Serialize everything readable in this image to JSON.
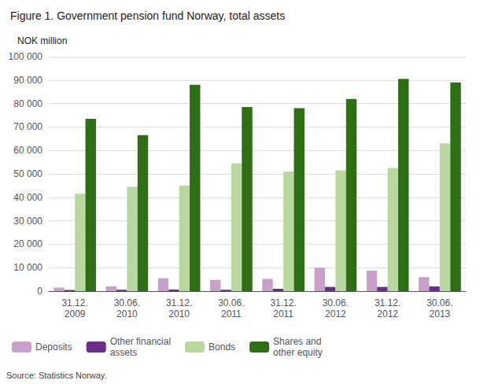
{
  "chart_data": {
    "type": "bar",
    "title": "Figure 1. Government pension fund Norway, total assets",
    "ylabel": "NOK million",
    "source": "Source: Statistics Norway.",
    "categories": [
      "31.12.\n2009",
      "30.06.\n2010",
      "31.12.\n2010",
      "30.06.\n2011",
      "31.12.\n2011",
      "30.06.\n2012",
      "31.12.\n2012",
      "30.06.\n2013"
    ],
    "series": [
      {
        "name": "Deposits",
        "color": "#c9a0c9",
        "values": [
          1500,
          2000,
          5500,
          4800,
          5200,
          10000,
          8800,
          6000
        ]
      },
      {
        "name": "Other financial\nassets",
        "color": "#6b2d8b",
        "values": [
          500,
          600,
          700,
          600,
          1000,
          1800,
          1800,
          2000
        ]
      },
      {
        "name": "Bonds",
        "color": "#b8d8a0",
        "values": [
          41500,
          44500,
          45000,
          54500,
          51000,
          51500,
          52500,
          63000
        ]
      },
      {
        "name": "Shares and\nother equity",
        "color": "#2e6e14",
        "values": [
          73500,
          66500,
          88000,
          78500,
          78000,
          82000,
          90500,
          89000
        ]
      }
    ],
    "ylim": [
      0,
      100000
    ],
    "yticks": [
      0,
      {
        "value": 10000,
        "label": "10 000"
      },
      {
        "value": 20000,
        "label": "20 000"
      },
      {
        "value": 30000,
        "label": "30 000"
      },
      {
        "value": 40000,
        "label": "40 000"
      },
      {
        "value": 50000,
        "label": "50 000"
      },
      {
        "value": 60000,
        "label": "60 000"
      },
      {
        "value": 70000,
        "label": "70 000"
      },
      {
        "value": 80000,
        "label": "80 000"
      },
      {
        "value": 90000,
        "label": "90 000"
      },
      {
        "value": 100000,
        "label": "100 000"
      }
    ],
    "grid": true,
    "legend": "bottom"
  }
}
